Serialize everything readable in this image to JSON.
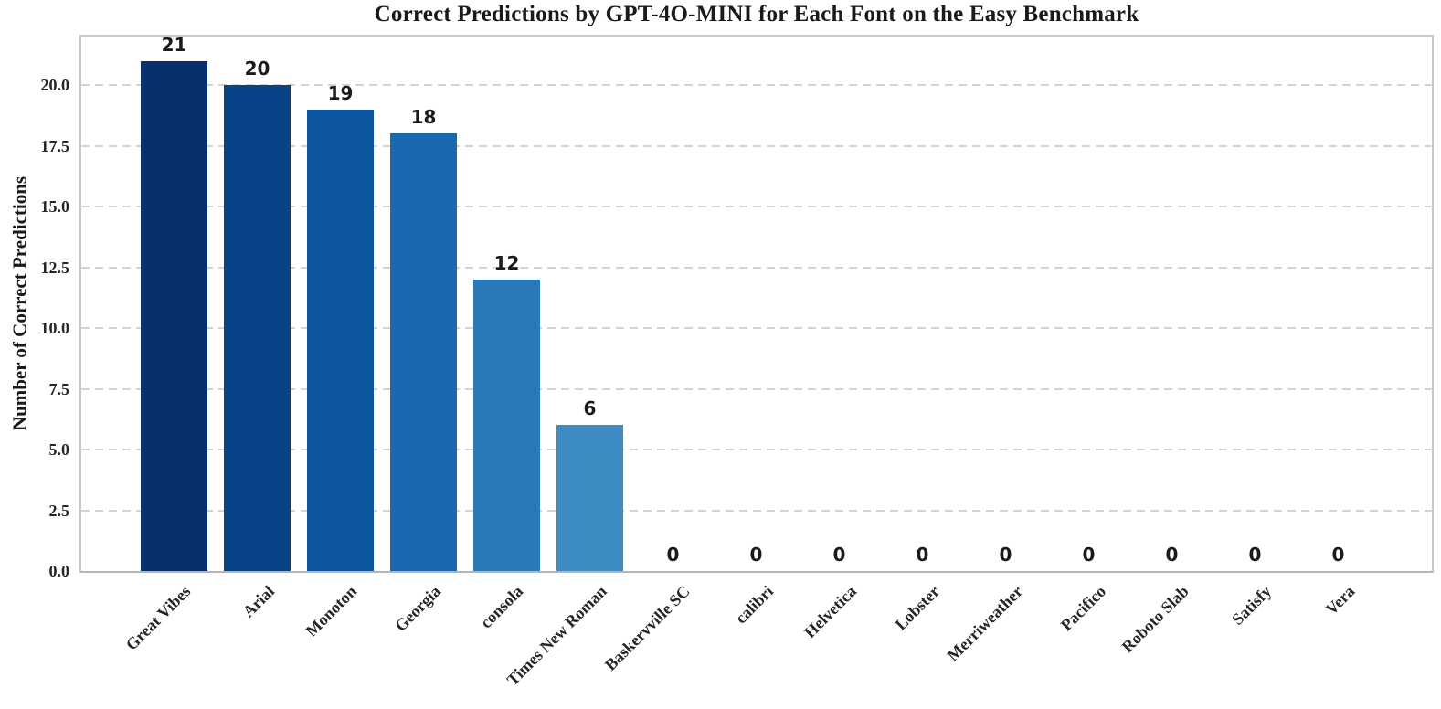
{
  "chart_data": {
    "type": "bar",
    "title": "Correct Predictions by GPT-4O-MINI for Each Font on the Easy Benchmark",
    "ylabel": "Number of Correct Predictions",
    "xlabel": "",
    "categories": [
      "Great Vibes",
      "Arial",
      "Monoton",
      "Georgia",
      "consola",
      "Times New Roman",
      "Baskervville SC",
      "calibri",
      "Helvetica",
      "Lobster",
      "Merriweather",
      "Pacifico",
      "Roboto Slab",
      "Satisfy",
      "Vera"
    ],
    "values": [
      21,
      20,
      19,
      18,
      12,
      6,
      0,
      0,
      0,
      0,
      0,
      0,
      0,
      0,
      0
    ],
    "bar_value_labels": [
      "21",
      "20",
      "19",
      "18",
      "12",
      "6",
      "0",
      "0",
      "0",
      "0",
      "0",
      "0",
      "0",
      "0",
      "0"
    ],
    "y_ticks": [
      "0.0",
      "2.5",
      "5.0",
      "7.5",
      "10.0",
      "12.5",
      "15.0",
      "17.5",
      "20.0"
    ],
    "ylim": [
      0,
      22
    ],
    "x_tick_rotation": 45,
    "grid": "horizontal-dashed",
    "legend": null,
    "bar_colors": [
      "#08306b",
      "#084387",
      "#0c56a0",
      "#1a68ae",
      "#2a7aba",
      "#3d8dc4",
      "#549ecd",
      "#6baed6",
      "#88bedc",
      "#a4cce3",
      "#bbd6eb",
      "#cde0f1",
      "#dbe9f6",
      "#e9f2fa",
      "#f7fbff"
    ],
    "colors": {
      "grid": "#d4d4d4",
      "spine": "#c9c9c9",
      "bottom_spine": "#b5b5b5",
      "title_text": "#1a1a1a",
      "tick_text": "#262626"
    }
  }
}
